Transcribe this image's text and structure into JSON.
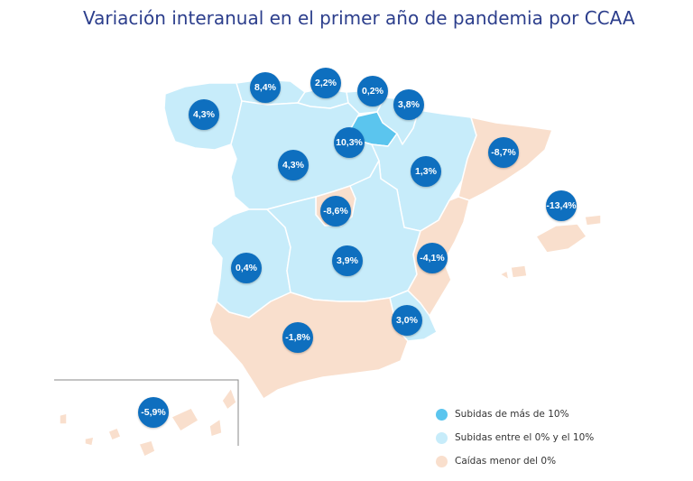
{
  "title": "Variación interanual en el primer año de pandemia por CCAA",
  "colors": {
    "high": "#5bc5ee",
    "mid": "#c7ecfa",
    "neg": "#f9dfcd",
    "bubble": "#0e6fbf",
    "title": "#2c3e8c"
  },
  "regions": [
    {
      "id": "galicia",
      "value": "4,3%",
      "category": "mid"
    },
    {
      "id": "asturias",
      "value": "8,4%",
      "category": "mid"
    },
    {
      "id": "cantabria",
      "value": "2,2%",
      "category": "mid"
    },
    {
      "id": "pais-vasco",
      "value": "0,2%",
      "category": "mid"
    },
    {
      "id": "navarra",
      "value": "3,8%",
      "category": "mid"
    },
    {
      "id": "la-rioja",
      "value": "10,3%",
      "category": "high"
    },
    {
      "id": "castilla-y-leon",
      "value": "4,3%",
      "category": "mid"
    },
    {
      "id": "aragon",
      "value": "1,3%",
      "category": "mid"
    },
    {
      "id": "cataluna",
      "value": "-8,7%",
      "category": "neg"
    },
    {
      "id": "baleares",
      "value": "-13,4%",
      "category": "neg"
    },
    {
      "id": "madrid",
      "value": "-8,6%",
      "category": "neg"
    },
    {
      "id": "extremadura",
      "value": "0,4%",
      "category": "mid"
    },
    {
      "id": "castilla-la-mancha",
      "value": "3,9%",
      "category": "mid"
    },
    {
      "id": "valencia",
      "value": "-4,1%",
      "category": "neg"
    },
    {
      "id": "murcia",
      "value": "3,0%",
      "category": "mid"
    },
    {
      "id": "andalucia",
      "value": "-1,8%",
      "category": "neg"
    },
    {
      "id": "canarias",
      "value": "-5,9%",
      "category": "neg"
    }
  ],
  "legend": [
    {
      "label": "Subidas de más de 10%",
      "category": "high"
    },
    {
      "label": "Subidas entre el 0% y el 10%",
      "category": "mid"
    },
    {
      "label": "Caídas menor del 0%",
      "category": "neg"
    }
  ]
}
